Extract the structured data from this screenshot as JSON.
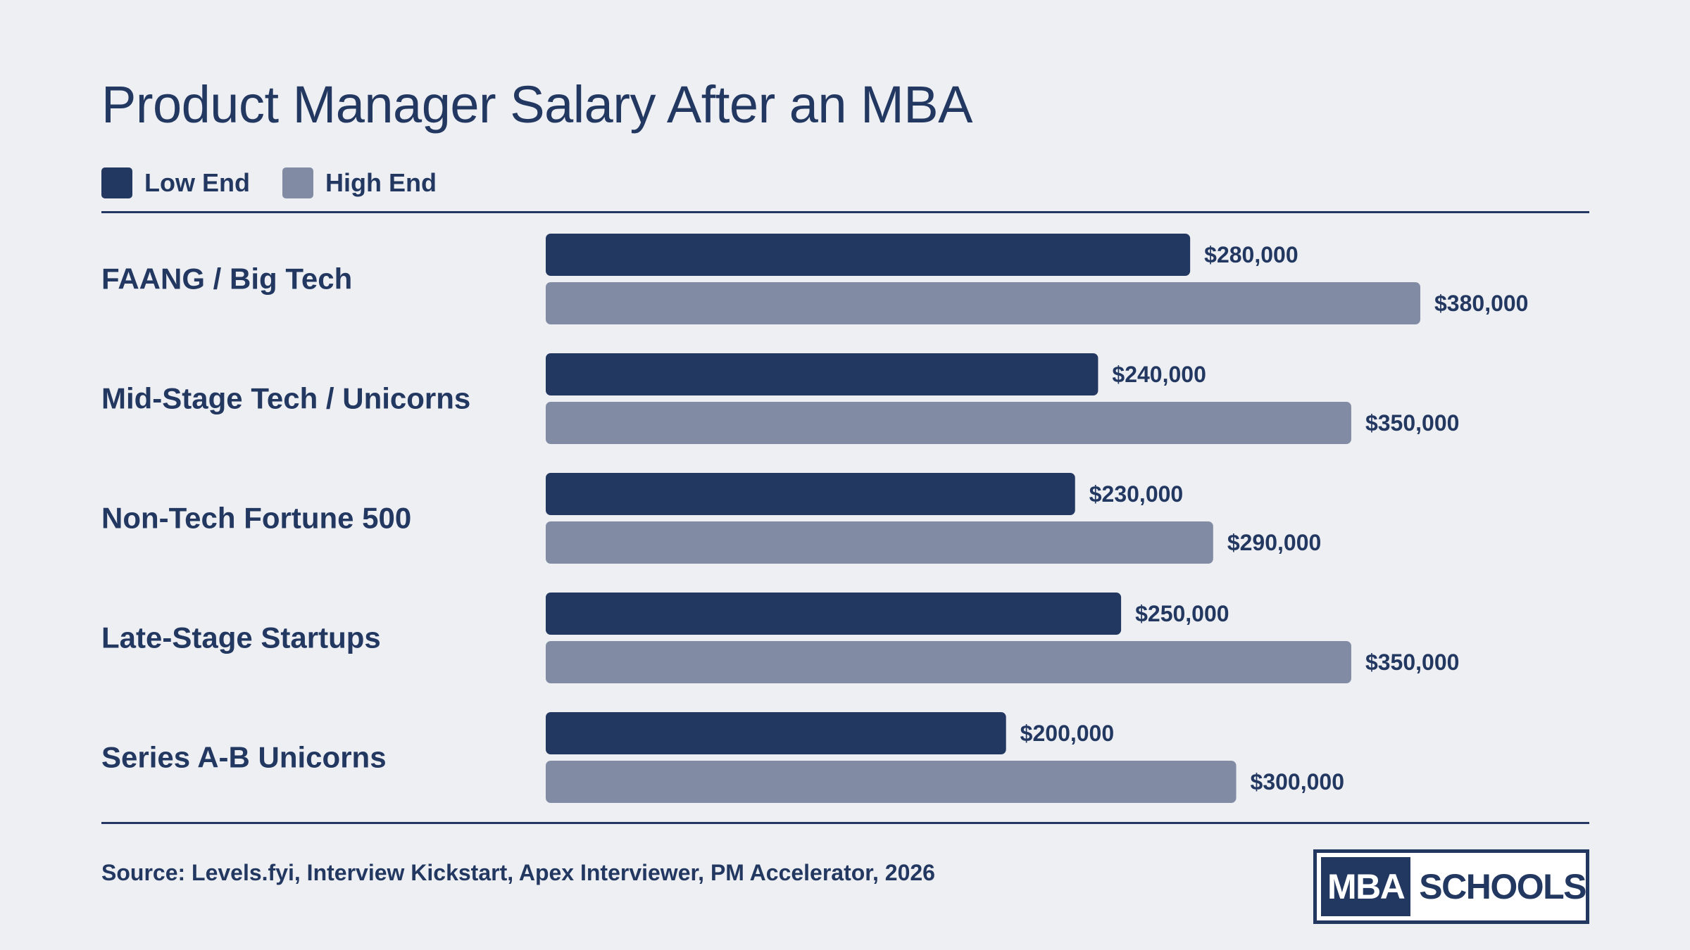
{
  "colors": {
    "low": "#233861",
    "high": "#818ca4",
    "text": "#233861",
    "background": "#eeeff3"
  },
  "legend": {
    "low_label": "Low End",
    "high_label": "High End"
  },
  "source": "Source: Levels.fyi, Interview Kickstart, Apex Interviewer, PM Accelerator, 2026",
  "logo": {
    "left_text": "MBA",
    "right_text": "SCHOOLS"
  },
  "chart_data": {
    "type": "bar",
    "orientation": "horizontal",
    "title": "Product Manager Salary After an MBA",
    "categories": [
      "FAANG / Big Tech",
      "Mid-Stage Tech / Unicorns",
      "Non-Tech Fortune 500",
      "Late-Stage Startups",
      "Series A-B Unicorns"
    ],
    "series": [
      {
        "name": "Low End",
        "values": [
          280000,
          240000,
          230000,
          250000,
          200000
        ],
        "labels": [
          "$280,000",
          "$240,000",
          "$230,000",
          "$250,000",
          "$200,000"
        ]
      },
      {
        "name": "High End",
        "values": [
          380000,
          350000,
          290000,
          350000,
          300000
        ],
        "labels": [
          "$380,000",
          "$350,000",
          "$290,000",
          "$350,000",
          "$300,000"
        ]
      }
    ],
    "xlim": [
      0,
      380000
    ],
    "legend_position": "top-left",
    "grid": false
  }
}
